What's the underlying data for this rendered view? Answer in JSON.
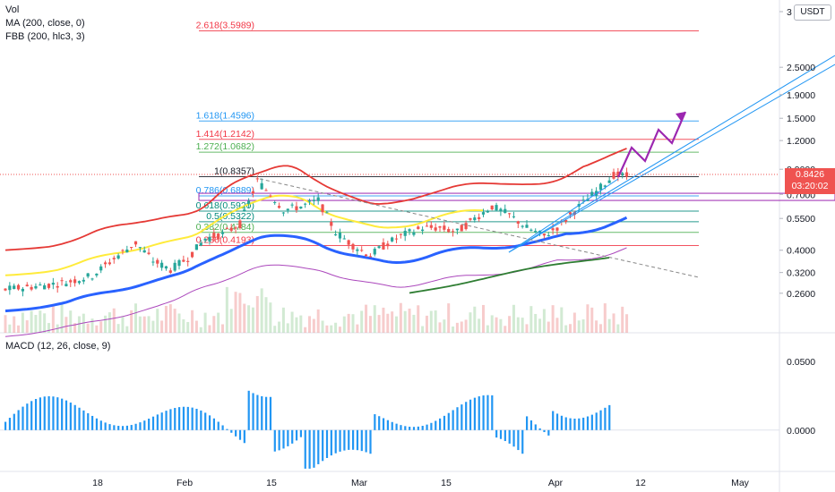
{
  "legend": {
    "vol": "Vol",
    "ma": "MA (200, close, 0)",
    "fbb": "FBB (200, hlc3, 3)",
    "macd": "MACD (12, 26, close, 9)"
  },
  "currency_badge": "USDT",
  "last_price": {
    "value": "0.8426",
    "countdown": "03:20:02",
    "color": "#ef5350"
  },
  "chart_data": [
    {
      "type": "candlestick",
      "x_labels": [
        "18",
        "Feb",
        "15",
        "Mar",
        "15",
        "Apr",
        "12",
        "May"
      ],
      "price_ticks": [
        "3",
        "2.5000",
        "1.9000",
        "1.5000",
        "1.2000",
        "0.9000",
        "0.7000",
        "0.5500",
        "0.4000",
        "0.3200",
        "0.2600"
      ],
      "y_scale": "log",
      "fib_levels": [
        {
          "label": "2.618(3.5989)",
          "value": 3.5989,
          "color": "#f23645"
        },
        {
          "label": "1.618(1.4596)",
          "value": 1.4596,
          "color": "#2196f3"
        },
        {
          "label": "1.414(1.2142)",
          "value": 1.2142,
          "color": "#f23645"
        },
        {
          "label": "1.272(1.0682)",
          "value": 1.0682,
          "color": "#4caf50"
        },
        {
          "label": "1(0.8357)",
          "value": 0.8357,
          "color": "#131722"
        },
        {
          "label": "0.786(0.6889)",
          "value": 0.6889,
          "color": "#2196f3"
        },
        {
          "label": "0.618(0.5920)",
          "value": 0.592,
          "color": "#00897b"
        },
        {
          "label": "0.5(0.5322)",
          "value": 0.5322,
          "color": "#00897b"
        },
        {
          "label": "0.382(0.4784)",
          "value": 0.4784,
          "color": "#4caf50"
        },
        {
          "label": "0.236(0.4193)",
          "value": 0.4193,
          "color": "#f23645"
        }
      ],
      "ma_color": "#2962ff",
      "band_colors": {
        "upper": "#e53935",
        "lower": "#ab47bc",
        "mid": "#ffeb3b",
        "long": "#2e7d32"
      }
    },
    {
      "type": "bar",
      "title": "MACD (12, 26, close, 9)",
      "y_ticks": [
        "0.0500",
        "0.0000"
      ],
      "bar_color": "#2196f3",
      "ylim": [
        -0.03,
        0.07
      ]
    }
  ]
}
